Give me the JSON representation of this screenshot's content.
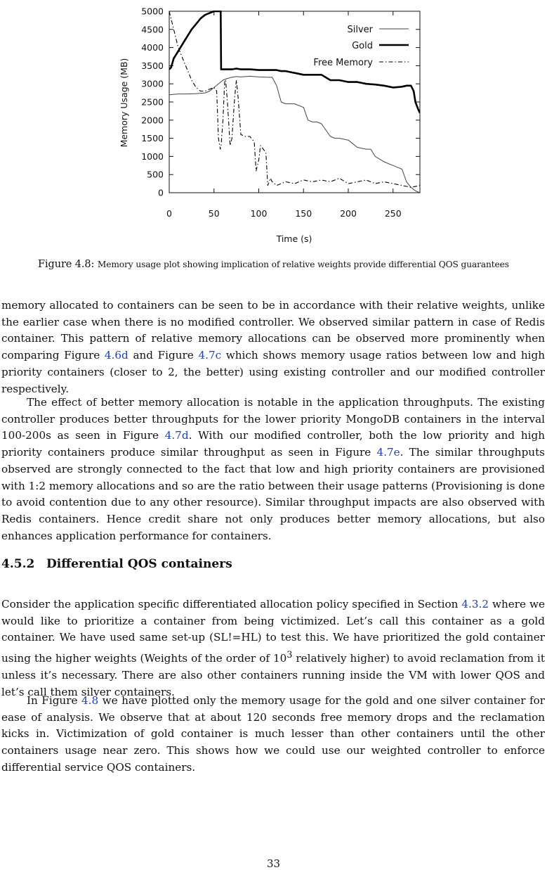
{
  "figure": {
    "caption_label": "Figure 4.8:",
    "caption_text": "Memory usage plot showing implication of relative weights provide differential QOS guarantees"
  },
  "chart_data": {
    "type": "line",
    "xlabel": "Time (s)",
    "ylabel": "Memory Usage (MB)",
    "xlim": [
      0,
      280
    ],
    "ylim": [
      0,
      5000
    ],
    "xticks": [
      0,
      50,
      100,
      150,
      200,
      250
    ],
    "yticks": [
      0,
      500,
      1000,
      1500,
      2000,
      2500,
      3000,
      3500,
      4000,
      4500,
      5000
    ],
    "legend_position": "top-right",
    "series": [
      {
        "name": "Silver",
        "style": "thin-solid",
        "x": [
          0,
          10,
          20,
          30,
          40,
          45,
          50,
          55,
          60,
          65,
          70,
          75,
          80,
          90,
          100,
          110,
          115,
          120,
          125,
          130,
          135,
          140,
          150,
          155,
          160,
          165,
          170,
          180,
          185,
          190,
          200,
          210,
          220,
          225,
          230,
          240,
          250,
          255,
          260,
          265,
          270,
          275,
          280
        ],
        "y": [
          2700,
          2720,
          2720,
          2730,
          2750,
          2800,
          2900,
          3000,
          3100,
          3150,
          3180,
          3200,
          3190,
          3210,
          3190,
          3180,
          3180,
          2950,
          2500,
          2450,
          2450,
          2450,
          2350,
          2000,
          1950,
          1950,
          1900,
          1550,
          1500,
          1500,
          1450,
          1250,
          1200,
          1200,
          1000,
          850,
          750,
          700,
          650,
          300,
          150,
          50,
          0
        ]
      },
      {
        "name": "Gold",
        "style": "thick-solid",
        "x": [
          0,
          2,
          5,
          10,
          15,
          20,
          25,
          30,
          35,
          40,
          45,
          50,
          57,
          57.5,
          58,
          60,
          70,
          75,
          80,
          90,
          100,
          110,
          120,
          125,
          130,
          140,
          150,
          160,
          170,
          180,
          190,
          200,
          210,
          220,
          230,
          240,
          250,
          260,
          265,
          270,
          273,
          275,
          278,
          280
        ],
        "y": [
          3400,
          3450,
          3700,
          3900,
          4100,
          4300,
          4500,
          4650,
          4800,
          4900,
          4950,
          5000,
          5000,
          5000,
          3400,
          3400,
          3400,
          3420,
          3400,
          3400,
          3380,
          3380,
          3380,
          3350,
          3350,
          3300,
          3250,
          3250,
          3250,
          3100,
          3100,
          3050,
          3050,
          3000,
          2980,
          2950,
          2900,
          2920,
          2950,
          2950,
          2800,
          2500,
          2300,
          2200
        ]
      },
      {
        "name": "Free Memory",
        "style": "dash-dot",
        "x": [
          0,
          5,
          10,
          15,
          20,
          25,
          30,
          35,
          40,
          45,
          50,
          53,
          55,
          57,
          58,
          60,
          62,
          63,
          65,
          68,
          70,
          73,
          75,
          77,
          80,
          85,
          90,
          95,
          97,
          100,
          102,
          105,
          108,
          110,
          113,
          115,
          120,
          130,
          140,
          150,
          160,
          170,
          180,
          190,
          200,
          210,
          220,
          230,
          240,
          250,
          260,
          270,
          280
        ],
        "y": [
          5000,
          4500,
          4000,
          3700,
          3400,
          3100,
          2900,
          2800,
          2800,
          2850,
          2900,
          2800,
          1500,
          1200,
          1300,
          2000,
          3100,
          3100,
          2500,
          1300,
          1500,
          2600,
          3100,
          2600,
          1600,
          1550,
          1550,
          1400,
          600,
          900,
          1300,
          1200,
          1100,
          200,
          400,
          300,
          200,
          300,
          250,
          350,
          300,
          350,
          300,
          400,
          250,
          300,
          350,
          250,
          300,
          250,
          200,
          150,
          200
        ]
      }
    ]
  },
  "body": {
    "p1": "memory allocated to containers can be seen to be in accordance with their relative weights, unlike the earlier case when there is no modified controller. We observed similar pattern in case of Redis container. This pattern of relative memory allocations can be observed more prominently when comparing Figure",
    "p1_ref1": "4.6d",
    "p1_mid": " and Figure ",
    "p1_ref2": "4.7c",
    "p1_end": " which shows memory usage ratios between low and high priority containers (closer to 2, the better) using existing controller and our modified controller respectively.",
    "p2_a": "The effect of better memory allocation is notable in the application throughputs. The existing controller produces better throughputs for the lower priority MongoDB containers in the interval 100-200s as seen in Figure ",
    "p2_ref1": "4.7d",
    "p2_b": ". With our modified controller, both the low priority and high priority containers produce similar throughput as seen in Figure ",
    "p2_ref2": "4.7e",
    "p2_c": ". The similar throughputs observed are strongly connected to the fact that low and high priority containers are provisioned with 1:2 memory allocations and so are the ratio between their usage patterns (Provisioning is done to avoid contention due to any other resource). Similar throughput impacts are also observed with Redis containers. Hence credit share not only produces better memory allocations, but also enhances application performance for containers.",
    "heading_num": "4.5.2",
    "heading_title": "Differential QOS containers",
    "p3_a": "Consider the application specific differentiated allocation policy specified in Section ",
    "p3_ref": "4.3.2",
    "p3_b": " where we would like to prioritize a container from being victimized. Let’s call this container as a gold container. We have used same set-up (SL!=HL) to test this. We have prioritized the gold container using the higher weights (Weights of the order of 10",
    "p3_sup": "3",
    "p3_c": " relatively higher) to avoid reclamation from it unless it’s necessary. There are also other containers running inside the VM with lower QOS and let’s call them silver containers.",
    "p4_a": "In Figure ",
    "p4_ref": "4.8",
    "p4_b": " we have plotted only the memory usage for the gold and one silver container for ease of analysis. We observe that at about 120 seconds free memory drops and the reclamation kicks in. Victimization of gold container is much lesser than other containers until the other containers usage near zero. This shows how we could use our weighted controller to enforce differential service QOS containers.",
    "page_number": "33"
  }
}
